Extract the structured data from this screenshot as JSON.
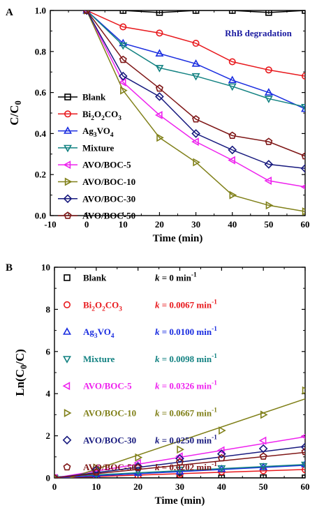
{
  "chart_data": [
    {
      "panel": "A",
      "type": "line",
      "title": "RhB degradation",
      "xlabel": "Time (min)",
      "ylabel_parts": [
        [
          "C/C",
          false
        ],
        [
          "0",
          true
        ]
      ],
      "xlim": [
        -10,
        60
      ],
      "ylim": [
        0.0,
        1.0
      ],
      "xticks": [
        -10,
        0,
        10,
        20,
        30,
        40,
        50,
        60
      ],
      "yticks": [
        0.0,
        0.2,
        0.4,
        0.6,
        0.8,
        1.0
      ],
      "ytick_labels": [
        "0.0",
        "0.2",
        "0.4",
        "0.6",
        "0.8",
        "1.0"
      ],
      "x": [
        0,
        10,
        20,
        30,
        40,
        50,
        60
      ],
      "legend_position": "left",
      "series": [
        {
          "name": "Blank",
          "name_parts": [
            [
              "Blank",
              false
            ]
          ],
          "color": "#000000",
          "marker": "square",
          "values": [
            1.0,
            1.0,
            0.99,
            1.0,
            1.0,
            0.99,
            1.0
          ]
        },
        {
          "name": "Bi2O2CO3",
          "name_parts": [
            [
              "Bi",
              false
            ],
            [
              "2",
              true
            ],
            [
              "O",
              false
            ],
            [
              "2",
              true
            ],
            [
              "CO",
              false
            ],
            [
              "3",
              true
            ]
          ],
          "color": "#e8191d",
          "marker": "circle",
          "values": [
            1.0,
            0.92,
            0.89,
            0.84,
            0.75,
            0.71,
            0.68
          ]
        },
        {
          "name": "Ag3VO4",
          "name_parts": [
            [
              "Ag",
              false
            ],
            [
              "3",
              true
            ],
            [
              "VO",
              false
            ],
            [
              "4",
              true
            ]
          ],
          "color": "#1a2de0",
          "marker": "triangle-up",
          "values": [
            1.0,
            0.84,
            0.79,
            0.74,
            0.66,
            0.6,
            0.52
          ]
        },
        {
          "name": "Mixture",
          "name_parts": [
            [
              "Mixture",
              false
            ]
          ],
          "color": "#138282",
          "marker": "triangle-down",
          "values": [
            1.0,
            0.83,
            0.72,
            0.68,
            0.63,
            0.57,
            0.53
          ]
        },
        {
          "name": "AVO/BOC-5",
          "name_parts": [
            [
              "AVO/BOC-5",
              false
            ]
          ],
          "color": "#ee22ee",
          "marker": "triangle-left",
          "values": [
            1.0,
            0.65,
            0.49,
            0.36,
            0.27,
            0.17,
            0.14
          ]
        },
        {
          "name": "AVO/BOC-10",
          "name_parts": [
            [
              "AVO/BOC-10",
              false
            ]
          ],
          "color": "#808019",
          "marker": "triangle-right",
          "values": [
            1.0,
            0.61,
            0.38,
            0.26,
            0.1,
            0.05,
            0.02
          ]
        },
        {
          "name": "AVO/BOC-30",
          "name_parts": [
            [
              "AVO/BOC-30",
              false
            ]
          ],
          "color": "#17197e",
          "marker": "diamond",
          "values": [
            1.0,
            0.68,
            0.58,
            0.4,
            0.32,
            0.25,
            0.23
          ]
        },
        {
          "name": "AVO/BOC-50",
          "name_parts": [
            [
              "AVO/BOC-50",
              false
            ]
          ],
          "color": "#7f1717",
          "marker": "pentagon",
          "values": [
            1.0,
            0.76,
            0.62,
            0.47,
            0.39,
            0.36,
            0.29
          ]
        }
      ]
    },
    {
      "panel": "B",
      "type": "scatter",
      "xlabel": "Time (min)",
      "ylabel_parts": [
        [
          "Ln(C",
          false
        ],
        [
          "0",
          true
        ],
        [
          "/C)",
          false
        ]
      ],
      "xlim": [
        0,
        60
      ],
      "ylim": [
        0,
        10
      ],
      "xticks": [
        0,
        10,
        20,
        30,
        40,
        50,
        60
      ],
      "yticks": [
        0,
        2,
        4,
        6,
        8,
        10
      ],
      "x": [
        0,
        10,
        20,
        30,
        40,
        50,
        60
      ],
      "legend_position": "top-left",
      "series": [
        {
          "name": "Blank",
          "name_parts": [
            [
              "Blank",
              false
            ]
          ],
          "color": "#000000",
          "marker": "square",
          "k_label": "k = 0 min-1",
          "k_parts": [
            [
              "k",
              "italic"
            ],
            [
              " = 0 min",
              ""
            ],
            [
              "-1",
              "sup"
            ]
          ],
          "fit": [
            0.0,
            0.0
          ],
          "values": [
            0.0,
            0.0,
            0.01,
            0.0,
            0.0,
            0.01,
            0.0
          ]
        },
        {
          "name": "Bi2O2CO3",
          "name_parts": [
            [
              "Bi",
              false
            ],
            [
              "2",
              true
            ],
            [
              "O",
              false
            ],
            [
              "2",
              true
            ],
            [
              "CO",
              false
            ],
            [
              "3",
              true
            ]
          ],
          "color": "#e8191d",
          "marker": "circle",
          "k_label": "k = 0.0067 min-1",
          "k_parts": [
            [
              "k",
              "italic"
            ],
            [
              " = 0.0067 min",
              ""
            ],
            [
              "-1",
              "sup"
            ]
          ],
          "fit": [
            0.0067,
            0.0
          ],
          "values": [
            0.0,
            0.08,
            0.12,
            0.17,
            0.29,
            0.34,
            0.39
          ]
        },
        {
          "name": "Ag3VO4",
          "name_parts": [
            [
              "Ag",
              false
            ],
            [
              "3",
              true
            ],
            [
              "VO",
              false
            ],
            [
              "4",
              true
            ]
          ],
          "color": "#1a2de0",
          "marker": "triangle-up",
          "k_label": "k = 0.0100 min-1",
          "k_parts": [
            [
              "k",
              "italic"
            ],
            [
              " = 0.0100 min",
              ""
            ],
            [
              "-1",
              "sup"
            ]
          ],
          "fit": [
            0.01,
            0.0
          ],
          "values": [
            0.0,
            0.17,
            0.24,
            0.3,
            0.42,
            0.51,
            0.65
          ]
        },
        {
          "name": "Mixture",
          "name_parts": [
            [
              "Mixture",
              false
            ]
          ],
          "color": "#138282",
          "marker": "triangle-down",
          "k_label": "k = 0.0098 min-1",
          "k_parts": [
            [
              "k",
              "italic"
            ],
            [
              " = 0.0098 min",
              ""
            ],
            [
              "-1",
              "sup"
            ]
          ],
          "fit": [
            0.0098,
            0.05
          ],
          "values": [
            0.0,
            0.19,
            0.33,
            0.39,
            0.46,
            0.56,
            0.63
          ]
        },
        {
          "name": "AVO/BOC-5",
          "name_parts": [
            [
              "AVO/BOC-5",
              false
            ]
          ],
          "color": "#ee22ee",
          "marker": "triangle-left",
          "k_label": "k = 0.0326 min-1",
          "k_parts": [
            [
              "k",
              "italic"
            ],
            [
              " = 0.0326 min",
              ""
            ],
            [
              "-1",
              "sup"
            ]
          ],
          "fit": [
            0.0326,
            0.0
          ],
          "values": [
            0.0,
            0.43,
            0.71,
            1.02,
            1.31,
            1.77,
            1.97
          ]
        },
        {
          "name": "AVO/BOC-10",
          "name_parts": [
            [
              "AVO/BOC-10",
              false
            ]
          ],
          "color": "#808019",
          "marker": "triangle-right",
          "k_label": "k = 0.0667 min-1",
          "k_parts": [
            [
              "k",
              "italic"
            ],
            [
              " = 0.0667 min",
              ""
            ],
            [
              "-1",
              "sup"
            ]
          ],
          "fit": [
            0.0667,
            -0.25
          ],
          "values": [
            0.0,
            0.49,
            0.97,
            1.35,
            2.25,
            3.0,
            4.15
          ]
        },
        {
          "name": "AVO/BOC-30",
          "name_parts": [
            [
              "AVO/BOC-30",
              false
            ]
          ],
          "color": "#17197e",
          "marker": "diamond",
          "k_label": "k = 0.0250 min-1",
          "k_parts": [
            [
              "k",
              "italic"
            ],
            [
              " = 0.0250 min",
              ""
            ],
            [
              "-1",
              "sup"
            ]
          ],
          "fit": [
            0.025,
            0.0
          ],
          "values": [
            0.0,
            0.39,
            0.55,
            0.92,
            1.14,
            1.39,
            1.47
          ]
        },
        {
          "name": "AVO/BOC-50",
          "name_parts": [
            [
              "AVO/BOC-50",
              false
            ]
          ],
          "color": "#7f1717",
          "marker": "pentagon",
          "k_label": "k = 0.0202 min-1",
          "k_parts": [
            [
              "k",
              "italic"
            ],
            [
              " = 0.0202 min",
              ""
            ],
            [
              "-1",
              "sup"
            ]
          ],
          "fit": [
            0.0202,
            0.0
          ],
          "values": [
            0.0,
            0.27,
            0.48,
            0.75,
            0.94,
            1.02,
            1.24
          ]
        }
      ]
    }
  ]
}
